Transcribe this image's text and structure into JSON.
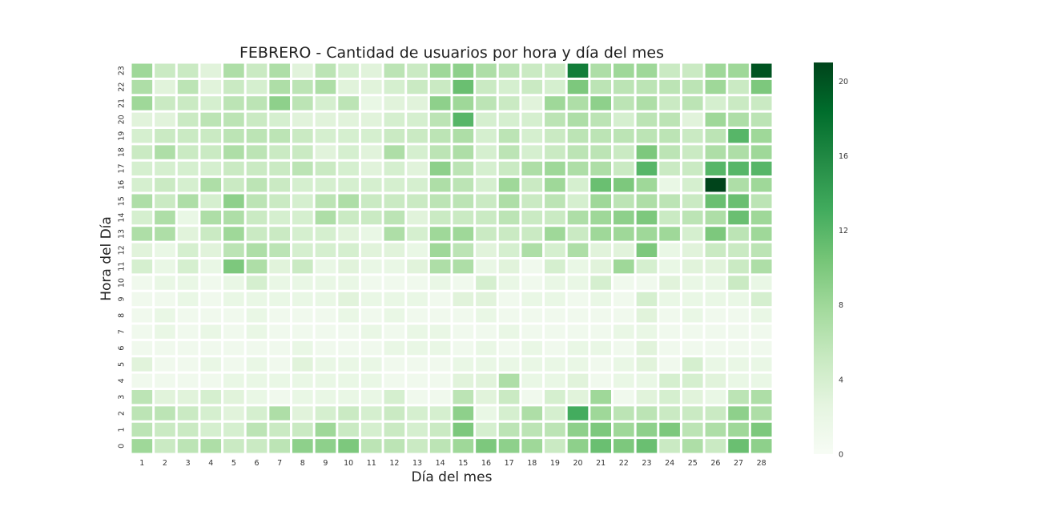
{
  "chart_data": {
    "type": "heatmap",
    "title": "FEBRERO - Cantidad de usuarios por hora y día del mes",
    "xlabel": "Día del mes",
    "ylabel": "Hora del Día",
    "x": [
      1,
      2,
      3,
      4,
      5,
      6,
      7,
      8,
      9,
      10,
      11,
      12,
      13,
      14,
      15,
      16,
      17,
      18,
      19,
      20,
      21,
      22,
      23,
      24,
      25,
      26,
      27,
      28
    ],
    "y": [
      0,
      1,
      2,
      3,
      4,
      5,
      6,
      7,
      8,
      9,
      10,
      11,
      12,
      13,
      14,
      15,
      16,
      17,
      18,
      19,
      20,
      21,
      22,
      23
    ],
    "values": [
      [
        8,
        5,
        6,
        7,
        5,
        5,
        6,
        9,
        9,
        10,
        6,
        6,
        5,
        6,
        8,
        10,
        9,
        8,
        5,
        9,
        11,
        10,
        11,
        5,
        7,
        5,
        11,
        9
      ],
      [
        6,
        5,
        5,
        4,
        4,
        6,
        5,
        5,
        8,
        5,
        4,
        5,
        4,
        5,
        10,
        4,
        6,
        6,
        6,
        9,
        10,
        8,
        9,
        10,
        6,
        7,
        8,
        10
      ],
      [
        6,
        6,
        5,
        4,
        3,
        4,
        7,
        3,
        4,
        5,
        4,
        5,
        4,
        4,
        9,
        2,
        4,
        7,
        4,
        13,
        8,
        6,
        6,
        5,
        5,
        5,
        9,
        7
      ],
      [
        6,
        3,
        3,
        4,
        3,
        2,
        1,
        2,
        2,
        2,
        2,
        4,
        1,
        1,
        6,
        3,
        5,
        1,
        4,
        3,
        8,
        1,
        3,
        4,
        3,
        2,
        6,
        7
      ],
      [
        1,
        1,
        1,
        1,
        2,
        2,
        2,
        2,
        2,
        2,
        2,
        1,
        1,
        1,
        3,
        3,
        7,
        2,
        2,
        3,
        1,
        2,
        2,
        4,
        4,
        3,
        2,
        2
      ],
      [
        3,
        1,
        1,
        2,
        1,
        2,
        1,
        3,
        2,
        2,
        2,
        1,
        1,
        1,
        2,
        2,
        2,
        2,
        2,
        2,
        1,
        2,
        3,
        1,
        4,
        2,
        2,
        2
      ],
      [
        1,
        1,
        1,
        1,
        1,
        1,
        1,
        2,
        1,
        1,
        1,
        2,
        2,
        2,
        1,
        2,
        1,
        2,
        1,
        2,
        2,
        1,
        3,
        1,
        1,
        1,
        1,
        1
      ],
      [
        1,
        2,
        1,
        2,
        1,
        2,
        1,
        1,
        1,
        1,
        2,
        1,
        2,
        2,
        1,
        1,
        2,
        1,
        1,
        1,
        1,
        2,
        2,
        1,
        1,
        1,
        1,
        1
      ],
      [
        1,
        2,
        1,
        1,
        1,
        2,
        1,
        1,
        1,
        2,
        1,
        2,
        1,
        1,
        1,
        2,
        1,
        1,
        1,
        1,
        1,
        1,
        3,
        1,
        2,
        1,
        1,
        2
      ],
      [
        1,
        1,
        2,
        1,
        2,
        2,
        2,
        2,
        2,
        3,
        2,
        2,
        2,
        1,
        3,
        3,
        1,
        2,
        2,
        1,
        2,
        1,
        4,
        2,
        2,
        2,
        2,
        4
      ],
      [
        1,
        2,
        2,
        1,
        2,
        4,
        2,
        2,
        2,
        2,
        1,
        1,
        1,
        2,
        1,
        4,
        2,
        1,
        2,
        2,
        4,
        1,
        1,
        3,
        2,
        2,
        5,
        2
      ],
      [
        4,
        2,
        4,
        2,
        10,
        7,
        3,
        5,
        2,
        3,
        2,
        2,
        3,
        7,
        7,
        2,
        3,
        1,
        4,
        2,
        3,
        8,
        4,
        2,
        3,
        3,
        5,
        7
      ],
      [
        3,
        2,
        4,
        3,
        6,
        7,
        6,
        4,
        4,
        4,
        3,
        3,
        2,
        8,
        6,
        3,
        4,
        7,
        4,
        7,
        3,
        3,
        10,
        2,
        3,
        5,
        5,
        6
      ],
      [
        7,
        7,
        3,
        5,
        8,
        5,
        5,
        4,
        4,
        3,
        2,
        7,
        4,
        8,
        8,
        5,
        5,
        5,
        8,
        5,
        8,
        8,
        8,
        8,
        4,
        10,
        6,
        8
      ],
      [
        4,
        7,
        2,
        7,
        7,
        5,
        4,
        4,
        7,
        5,
        5,
        6,
        3,
        5,
        5,
        5,
        6,
        5,
        5,
        7,
        8,
        9,
        10,
        5,
        6,
        7,
        11,
        8
      ],
      [
        7,
        5,
        7,
        4,
        9,
        6,
        5,
        4,
        6,
        7,
        5,
        5,
        5,
        6,
        6,
        5,
        7,
        5,
        6,
        4,
        8,
        6,
        7,
        6,
        5,
        11,
        11,
        6
      ],
      [
        4,
        5,
        4,
        7,
        5,
        6,
        5,
        4,
        4,
        4,
        4,
        4,
        4,
        7,
        6,
        4,
        8,
        5,
        8,
        4,
        11,
        10,
        8,
        2,
        4,
        21,
        7,
        8
      ],
      [
        4,
        4,
        4,
        4,
        5,
        5,
        5,
        6,
        5,
        4,
        3,
        4,
        3,
        9,
        6,
        4,
        5,
        7,
        8,
        7,
        7,
        5,
        12,
        5,
        5,
        12,
        12,
        12
      ],
      [
        5,
        7,
        5,
        5,
        7,
        6,
        5,
        5,
        3,
        4,
        3,
        7,
        4,
        6,
        7,
        4,
        6,
        4,
        5,
        6,
        6,
        5,
        10,
        6,
        5,
        7,
        7,
        8
      ],
      [
        4,
        5,
        5,
        5,
        6,
        6,
        6,
        5,
        4,
        4,
        4,
        5,
        5,
        6,
        7,
        4,
        6,
        4,
        5,
        6,
        6,
        6,
        6,
        6,
        5,
        6,
        12,
        8
      ],
      [
        3,
        3,
        5,
        6,
        6,
        5,
        4,
        3,
        3,
        3,
        3,
        4,
        4,
        6,
        12,
        4,
        4,
        4,
        6,
        7,
        6,
        4,
        6,
        6,
        3,
        8,
        7,
        6
      ],
      [
        8,
        5,
        5,
        4,
        6,
        6,
        9,
        6,
        4,
        6,
        2,
        3,
        3,
        9,
        8,
        6,
        5,
        3,
        8,
        7,
        9,
        6,
        7,
        5,
        6,
        4,
        5,
        5
      ],
      [
        7,
        3,
        6,
        3,
        5,
        4,
        7,
        6,
        7,
        3,
        3,
        4,
        5,
        5,
        11,
        5,
        4,
        5,
        4,
        10,
        6,
        6,
        6,
        6,
        6,
        8,
        5,
        10
      ],
      [
        8,
        5,
        5,
        3,
        7,
        5,
        7,
        3,
        6,
        4,
        3,
        6,
        5,
        8,
        9,
        7,
        6,
        5,
        5,
        17,
        7,
        8,
        8,
        5,
        5,
        8,
        8,
        20
      ]
    ],
    "vmin": 0,
    "vmax": 21,
    "colorbar_ticks": [
      0,
      4,
      8,
      12,
      16,
      20
    ],
    "colormap": "Greens",
    "legend": "colorbar-right"
  }
}
